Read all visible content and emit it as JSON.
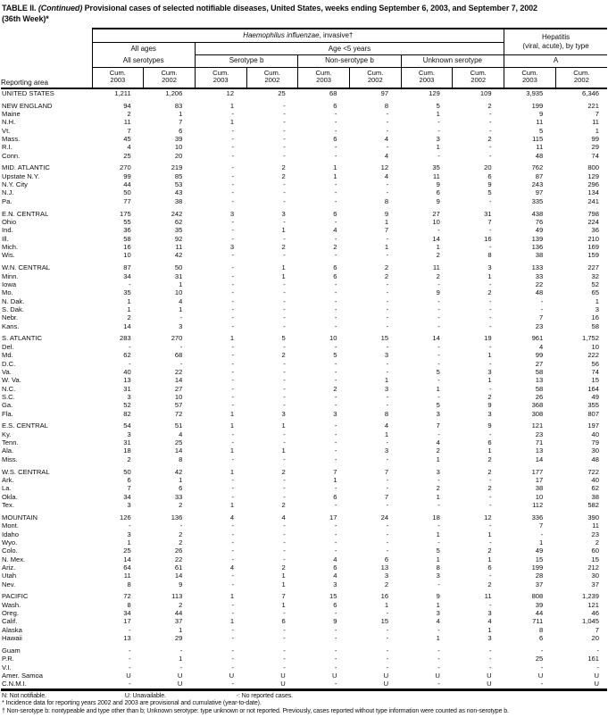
{
  "title": {
    "prefix": "TABLE II. ",
    "continued": "(Continued)",
    "line1_rest": " Provisional cases of selected notifiable diseases, United States, weeks ending September 6, 2003, and September 7, 2002",
    "line2": "(36th Week)*"
  },
  "header": {
    "reporting_area": "Reporting area",
    "hi_title_italic": "Haemophilus influenzae",
    "hi_title_rest": ", invasive†",
    "hepatitis_line1": "Hepatitis",
    "hepatitis_line2": "(viral, acute), by type",
    "all_ages": "All ages",
    "age_under_5": "Age <5 years",
    "all_serotypes": "All serotypes",
    "serotype_b": "Serotype b",
    "non_serotype_b": "Non-serotype b",
    "unknown_serotype": "Unknown serotype",
    "type_a": "A",
    "cum_label": "Cum.",
    "years": [
      "2003",
      "2002"
    ]
  },
  "table": {
    "rows": [
      {
        "area": "UNITED STATES",
        "gap": false,
        "values": [
          "1,211",
          "1,206",
          "12",
          "25",
          "68",
          "97",
          "129",
          "109",
          "3,935",
          "6,346"
        ]
      },
      {
        "area": "NEW ENGLAND",
        "gap": true,
        "values": [
          "94",
          "83",
          "1",
          "-",
          "6",
          "8",
          "5",
          "2",
          "199",
          "221"
        ]
      },
      {
        "area": "Maine",
        "gap": false,
        "values": [
          "2",
          "1",
          "-",
          "-",
          "-",
          "-",
          "1",
          "-",
          "9",
          "7"
        ]
      },
      {
        "area": "N.H.",
        "gap": false,
        "values": [
          "11",
          "7",
          "1",
          "-",
          "-",
          "-",
          "-",
          "-",
          "11",
          "11"
        ]
      },
      {
        "area": "Vt.",
        "gap": false,
        "values": [
          "7",
          "6",
          "-",
          "-",
          "-",
          "-",
          "-",
          "-",
          "5",
          "1"
        ]
      },
      {
        "area": "Mass.",
        "gap": false,
        "values": [
          "45",
          "39",
          "-",
          "-",
          "6",
          "4",
          "3",
          "2",
          "115",
          "99"
        ]
      },
      {
        "area": "R.I.",
        "gap": false,
        "values": [
          "4",
          "10",
          "-",
          "-",
          "-",
          "-",
          "1",
          "-",
          "11",
          "29"
        ]
      },
      {
        "area": "Conn.",
        "gap": false,
        "values": [
          "25",
          "20",
          "-",
          "-",
          "-",
          "4",
          "-",
          "-",
          "48",
          "74"
        ]
      },
      {
        "area": "MID. ATLANTIC",
        "gap": true,
        "values": [
          "270",
          "219",
          "-",
          "2",
          "1",
          "12",
          "35",
          "20",
          "762",
          "800"
        ]
      },
      {
        "area": "Upstate N.Y.",
        "gap": false,
        "values": [
          "99",
          "85",
          "-",
          "2",
          "1",
          "4",
          "11",
          "6",
          "87",
          "129"
        ]
      },
      {
        "area": "N.Y. City",
        "gap": false,
        "values": [
          "44",
          "53",
          "-",
          "-",
          "-",
          "-",
          "9",
          "9",
          "243",
          "296"
        ]
      },
      {
        "area": "N.J.",
        "gap": false,
        "values": [
          "50",
          "43",
          "-",
          "-",
          "-",
          "-",
          "6",
          "5",
          "97",
          "134"
        ]
      },
      {
        "area": "Pa.",
        "gap": false,
        "values": [
          "77",
          "38",
          "-",
          "-",
          "-",
          "8",
          "9",
          "-",
          "335",
          "241"
        ]
      },
      {
        "area": "E.N. CENTRAL",
        "gap": true,
        "values": [
          "175",
          "242",
          "3",
          "3",
          "6",
          "9",
          "27",
          "31",
          "438",
          "798"
        ]
      },
      {
        "area": "Ohio",
        "gap": false,
        "values": [
          "55",
          "62",
          "-",
          "-",
          "-",
          "1",
          "10",
          "7",
          "76",
          "224"
        ]
      },
      {
        "area": "Ind.",
        "gap": false,
        "values": [
          "36",
          "35",
          "-",
          "1",
          "4",
          "7",
          "-",
          "-",
          "49",
          "36"
        ]
      },
      {
        "area": "Ill.",
        "gap": false,
        "values": [
          "58",
          "92",
          "-",
          "-",
          "-",
          "-",
          "14",
          "16",
          "139",
          "210"
        ]
      },
      {
        "area": "Mich.",
        "gap": false,
        "values": [
          "16",
          "11",
          "3",
          "2",
          "2",
          "1",
          "1",
          "-",
          "136",
          "169"
        ]
      },
      {
        "area": "Wis.",
        "gap": false,
        "values": [
          "10",
          "42",
          "-",
          "-",
          "-",
          "-",
          "2",
          "8",
          "38",
          "159"
        ]
      },
      {
        "area": "W.N. CENTRAL",
        "gap": true,
        "values": [
          "87",
          "50",
          "-",
          "1",
          "6",
          "2",
          "11",
          "3",
          "133",
          "227"
        ]
      },
      {
        "area": "Minn.",
        "gap": false,
        "values": [
          "34",
          "31",
          "-",
          "1",
          "6",
          "2",
          "2",
          "1",
          "33",
          "32"
        ]
      },
      {
        "area": "Iowa",
        "gap": false,
        "values": [
          "-",
          "1",
          "-",
          "-",
          "-",
          "-",
          "-",
          "-",
          "22",
          "52"
        ]
      },
      {
        "area": "Mo.",
        "gap": false,
        "values": [
          "35",
          "10",
          "-",
          "-",
          "-",
          "-",
          "9",
          "2",
          "48",
          "65"
        ]
      },
      {
        "area": "N. Dak.",
        "gap": false,
        "values": [
          "1",
          "4",
          "-",
          "-",
          "-",
          "-",
          "-",
          "-",
          "-",
          "1"
        ]
      },
      {
        "area": "S. Dak.",
        "gap": false,
        "values": [
          "1",
          "1",
          "-",
          "-",
          "-",
          "-",
          "-",
          "-",
          "-",
          "3"
        ]
      },
      {
        "area": "Nebr.",
        "gap": false,
        "values": [
          "2",
          "-",
          "-",
          "-",
          "-",
          "-",
          "-",
          "-",
          "7",
          "16"
        ]
      },
      {
        "area": "Kans.",
        "gap": false,
        "values": [
          "14",
          "3",
          "-",
          "-",
          "-",
          "-",
          "-",
          "-",
          "23",
          "58"
        ]
      },
      {
        "area": "S. ATLANTIC",
        "gap": true,
        "values": [
          "283",
          "270",
          "1",
          "5",
          "10",
          "15",
          "14",
          "19",
          "961",
          "1,752"
        ]
      },
      {
        "area": "Del.",
        "gap": false,
        "values": [
          "-",
          "-",
          "-",
          "-",
          "-",
          "-",
          "-",
          "-",
          "4",
          "10"
        ]
      },
      {
        "area": "Md.",
        "gap": false,
        "values": [
          "62",
          "68",
          "-",
          "2",
          "5",
          "3",
          "-",
          "1",
          "99",
          "222"
        ]
      },
      {
        "area": "D.C.",
        "gap": false,
        "values": [
          "-",
          "-",
          "-",
          "-",
          "-",
          "-",
          "-",
          "-",
          "27",
          "56"
        ]
      },
      {
        "area": "Va.",
        "gap": false,
        "values": [
          "40",
          "22",
          "-",
          "-",
          "-",
          "-",
          "5",
          "3",
          "58",
          "74"
        ]
      },
      {
        "area": "W. Va.",
        "gap": false,
        "values": [
          "13",
          "14",
          "-",
          "-",
          "-",
          "1",
          "-",
          "1",
          "13",
          "15"
        ]
      },
      {
        "area": "N.C.",
        "gap": false,
        "values": [
          "31",
          "27",
          "-",
          "-",
          "2",
          "3",
          "1",
          "-",
          "58",
          "164"
        ]
      },
      {
        "area": "S.C.",
        "gap": false,
        "values": [
          "3",
          "10",
          "-",
          "-",
          "-",
          "-",
          "-",
          "2",
          "26",
          "49"
        ]
      },
      {
        "area": "Ga.",
        "gap": false,
        "values": [
          "52",
          "57",
          "-",
          "-",
          "-",
          "-",
          "5",
          "9",
          "368",
          "355"
        ]
      },
      {
        "area": "Fla.",
        "gap": false,
        "values": [
          "82",
          "72",
          "1",
          "3",
          "3",
          "8",
          "3",
          "3",
          "308",
          "807"
        ]
      },
      {
        "area": "E.S. CENTRAL",
        "gap": true,
        "values": [
          "54",
          "51",
          "1",
          "1",
          "-",
          "4",
          "7",
          "9",
          "121",
          "197"
        ]
      },
      {
        "area": "Ky.",
        "gap": false,
        "values": [
          "3",
          "4",
          "-",
          "-",
          "-",
          "1",
          "-",
          "-",
          "23",
          "40"
        ]
      },
      {
        "area": "Tenn.",
        "gap": false,
        "values": [
          "31",
          "25",
          "-",
          "-",
          "-",
          "-",
          "4",
          "6",
          "71",
          "79"
        ]
      },
      {
        "area": "Ala.",
        "gap": false,
        "values": [
          "18",
          "14",
          "1",
          "1",
          "-",
          "3",
          "2",
          "1",
          "13",
          "30"
        ]
      },
      {
        "area": "Miss.",
        "gap": false,
        "values": [
          "2",
          "8",
          "-",
          "-",
          "-",
          "-",
          "1",
          "2",
          "14",
          "48"
        ]
      },
      {
        "area": "W.S. CENTRAL",
        "gap": true,
        "values": [
          "50",
          "42",
          "1",
          "2",
          "7",
          "7",
          "3",
          "2",
          "177",
          "722"
        ]
      },
      {
        "area": "Ark.",
        "gap": false,
        "values": [
          "6",
          "1",
          "-",
          "-",
          "1",
          "-",
          "-",
          "-",
          "17",
          "40"
        ]
      },
      {
        "area": "La.",
        "gap": false,
        "values": [
          "7",
          "6",
          "-",
          "-",
          "-",
          "-",
          "2",
          "2",
          "38",
          "62"
        ]
      },
      {
        "area": "Okla.",
        "gap": false,
        "values": [
          "34",
          "33",
          "-",
          "-",
          "6",
          "7",
          "1",
          "-",
          "10",
          "38"
        ]
      },
      {
        "area": "Tex.",
        "gap": false,
        "values": [
          "3",
          "2",
          "1",
          "2",
          "-",
          "-",
          "-",
          "-",
          "112",
          "582"
        ]
      },
      {
        "area": "MOUNTAIN",
        "gap": true,
        "values": [
          "126",
          "136",
          "4",
          "4",
          "17",
          "24",
          "18",
          "12",
          "336",
          "390"
        ]
      },
      {
        "area": "Mont.",
        "gap": false,
        "values": [
          "-",
          "-",
          "-",
          "-",
          "-",
          "-",
          "-",
          "-",
          "7",
          "11"
        ]
      },
      {
        "area": "Idaho",
        "gap": false,
        "values": [
          "3",
          "2",
          "-",
          "-",
          "-",
          "-",
          "1",
          "1",
          "-",
          "23"
        ]
      },
      {
        "area": "Wyo.",
        "gap": false,
        "values": [
          "1",
          "2",
          "-",
          "-",
          "-",
          "-",
          "-",
          "-",
          "1",
          "2"
        ]
      },
      {
        "area": "Colo.",
        "gap": false,
        "values": [
          "25",
          "26",
          "-",
          "-",
          "-",
          "-",
          "5",
          "2",
          "49",
          "60"
        ]
      },
      {
        "area": "N. Mex.",
        "gap": false,
        "values": [
          "14",
          "22",
          "-",
          "-",
          "4",
          "6",
          "1",
          "1",
          "15",
          "15"
        ]
      },
      {
        "area": "Ariz.",
        "gap": false,
        "values": [
          "64",
          "61",
          "4",
          "2",
          "6",
          "13",
          "8",
          "6",
          "199",
          "212"
        ]
      },
      {
        "area": "Utah",
        "gap": false,
        "values": [
          "11",
          "14",
          "-",
          "1",
          "4",
          "3",
          "3",
          "-",
          "28",
          "30"
        ]
      },
      {
        "area": "Nev.",
        "gap": false,
        "values": [
          "8",
          "9",
          "-",
          "1",
          "3",
          "2",
          "-",
          "2",
          "37",
          "37"
        ]
      },
      {
        "area": "PACIFIC",
        "gap": true,
        "values": [
          "72",
          "113",
          "1",
          "7",
          "15",
          "16",
          "9",
          "11",
          "808",
          "1,239"
        ]
      },
      {
        "area": "Wash.",
        "gap": false,
        "values": [
          "8",
          "2",
          "-",
          "1",
          "6",
          "1",
          "1",
          "-",
          "39",
          "121"
        ]
      },
      {
        "area": "Oreg.",
        "gap": false,
        "values": [
          "34",
          "44",
          "-",
          "-",
          "-",
          "-",
          "3",
          "3",
          "44",
          "46"
        ]
      },
      {
        "area": "Calif.",
        "gap": false,
        "values": [
          "17",
          "37",
          "1",
          "6",
          "9",
          "15",
          "4",
          "4",
          "711",
          "1,045"
        ]
      },
      {
        "area": "Alaska",
        "gap": false,
        "values": [
          "-",
          "1",
          "-",
          "-",
          "-",
          "-",
          "-",
          "1",
          "8",
          "7"
        ]
      },
      {
        "area": "Hawaii",
        "gap": false,
        "values": [
          "13",
          "29",
          "-",
          "-",
          "-",
          "-",
          "1",
          "3",
          "6",
          "20"
        ]
      },
      {
        "area": "Guam",
        "gap": true,
        "values": [
          "-",
          "-",
          "-",
          "-",
          "-",
          "-",
          "-",
          "-",
          "-",
          "-"
        ]
      },
      {
        "area": "P.R.",
        "gap": false,
        "values": [
          "-",
          "1",
          "-",
          "-",
          "-",
          "-",
          "-",
          "-",
          "25",
          "161"
        ]
      },
      {
        "area": "V.I.",
        "gap": false,
        "values": [
          "-",
          "-",
          "-",
          "-",
          "-",
          "-",
          "-",
          "-",
          "-",
          "-"
        ]
      },
      {
        "area": "Amer. Samoa",
        "gap": false,
        "values": [
          "U",
          "U",
          "U",
          "U",
          "U",
          "U",
          "U",
          "U",
          "U",
          "U"
        ]
      },
      {
        "area": "C.N.M.I.",
        "gap": false,
        "values": [
          "-",
          "U",
          "-",
          "U",
          "-",
          "U",
          "-",
          "U",
          "-",
          "U"
        ]
      }
    ]
  },
  "footnotes": {
    "legend_n": "N: Not notifiable.",
    "legend_u": "U: Unavailable.",
    "legend_dash": "-: No reported cases.",
    "star": "* Incidence data for reporting years 2002 and 2003 are provisional and cumulative (year-to-date).",
    "dagger": "† Non-serotype b: nontypeable and type other than b; Unknown serotype: type unknown or not reported. Previously, cases reported without type information were counted as non-serotype b."
  }
}
